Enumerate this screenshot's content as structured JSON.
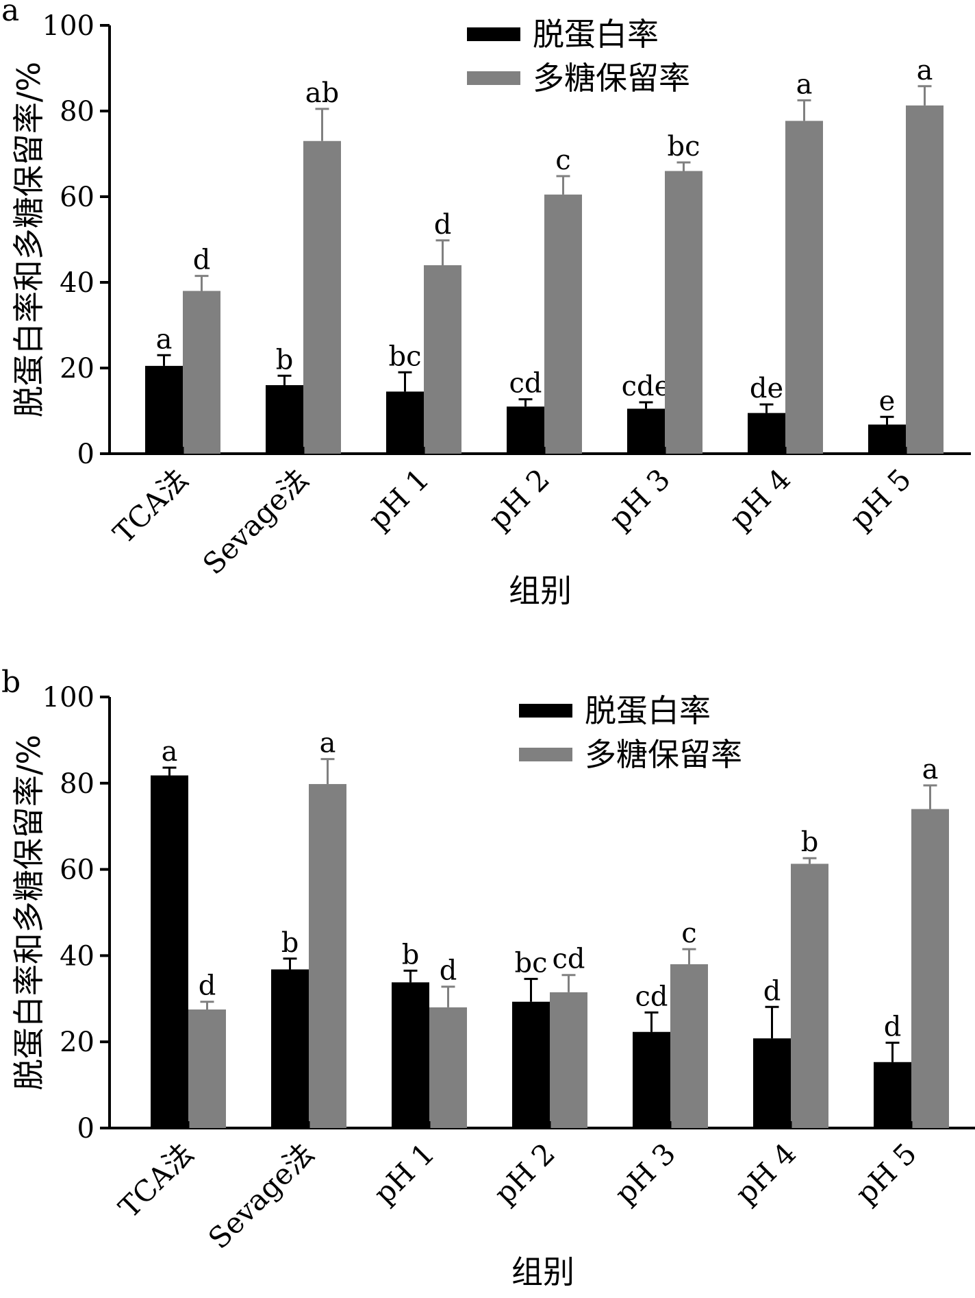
{
  "chart_data": [
    {
      "type": "bar",
      "panel_label": "a",
      "ylabel": "脱蛋白率和多糖保留率/%",
      "xlabel": "组别",
      "ylim": [
        0,
        100
      ],
      "yticks": [
        "0",
        "20",
        "40",
        "60",
        "80",
        "100"
      ],
      "categories": [
        "TCA法",
        "Sevage法",
        "pH 1",
        "pH 2",
        "pH 3",
        "pH 4",
        "pH 5"
      ],
      "legend_position": "top-center",
      "series": [
        {
          "name": "脱蛋白率",
          "color": "#000000",
          "values": [
            20.5,
            16.0,
            14.5,
            11.0,
            10.5,
            9.5,
            6.8
          ],
          "errors": [
            2.5,
            2.2,
            4.5,
            1.7,
            1.5,
            2.0,
            1.8
          ],
          "labels": [
            "a",
            "b",
            "bc",
            "cd",
            "cde",
            "de",
            "e"
          ]
        },
        {
          "name": "多糖保留率",
          "color": "#808080",
          "values": [
            38.0,
            73.0,
            44.0,
            60.5,
            66.0,
            77.7,
            81.3
          ],
          "errors": [
            3.5,
            7.5,
            5.8,
            4.3,
            2.0,
            4.8,
            4.5
          ],
          "labels": [
            "d",
            "ab",
            "d",
            "c",
            "bc",
            "a",
            "a"
          ]
        }
      ]
    },
    {
      "type": "bar",
      "panel_label": "b",
      "ylabel": "脱蛋白率和多糖保留率/%",
      "xlabel": "组别",
      "ylim": [
        0,
        100
      ],
      "yticks": [
        "0",
        "20",
        "40",
        "60",
        "80",
        "100"
      ],
      "categories": [
        "TCA法",
        "Sevage法",
        "pH 1",
        "pH 2",
        "pH 3",
        "pH 4",
        "pH 5"
      ],
      "legend_position": "top-right",
      "series": [
        {
          "name": "脱蛋白率",
          "color": "#000000",
          "values": [
            81.8,
            36.8,
            33.8,
            29.3,
            22.3,
            20.8,
            15.3
          ],
          "errors": [
            1.8,
            2.5,
            2.7,
            5.3,
            4.5,
            7.3,
            4.5
          ],
          "labels": [
            "a",
            "b",
            "b",
            "bc",
            "cd",
            "d",
            "d"
          ]
        },
        {
          "name": "多糖保留率",
          "color": "#808080",
          "values": [
            27.5,
            79.8,
            28.0,
            31.5,
            38.0,
            61.3,
            74.0
          ],
          "errors": [
            1.8,
            5.8,
            4.8,
            4.0,
            3.5,
            1.3,
            5.5
          ],
          "labels": [
            "d",
            "a",
            "d",
            "cd",
            "c",
            "b",
            "a"
          ]
        }
      ]
    }
  ]
}
